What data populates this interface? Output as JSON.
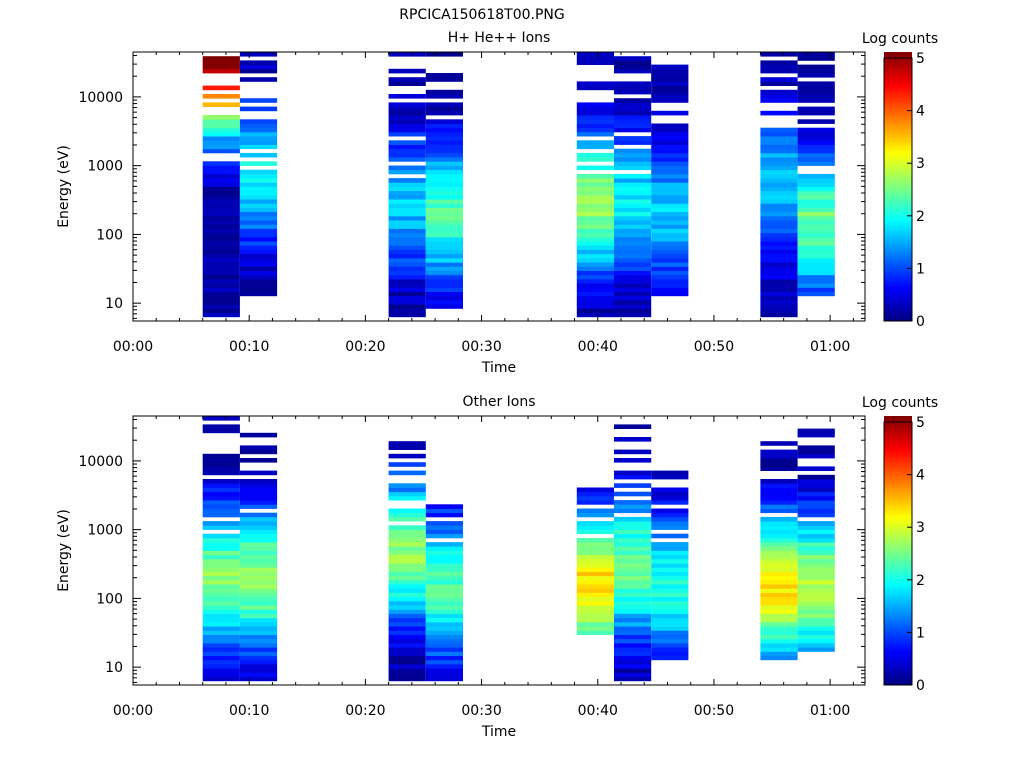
{
  "figure": {
    "title": "RPCICA150618T00.PNG"
  },
  "colormap": [
    "#00007f",
    "#0000ff",
    "#007fff",
    "#00ffff",
    "#7fff7f",
    "#ffff00",
    "#ff7f00",
    "#ff0000",
    "#7f0000"
  ],
  "chart_data": [
    {
      "type": "heatmap",
      "title": "H+ He++ Ions",
      "xlabel": "Time",
      "ylabel": "Energy (eV)",
      "y_scale": "log",
      "xlim_minutes": [
        0,
        63
      ],
      "ylim": [
        5.5,
        45000
      ],
      "x_ticks": [
        {
          "t": 0,
          "label": "00:00"
        },
        {
          "t": 10,
          "label": "00:10"
        },
        {
          "t": 20,
          "label": "00:20"
        },
        {
          "t": 30,
          "label": "00:30"
        },
        {
          "t": 40,
          "label": "00:40"
        },
        {
          "t": 50,
          "label": "00:50"
        },
        {
          "t": 60,
          "label": "01:00"
        }
      ],
      "y_ticks": [
        {
          "v": 10,
          "label": "10"
        },
        {
          "v": 100,
          "label": "100"
        },
        {
          "v": 1000,
          "label": "1000"
        },
        {
          "v": 10000,
          "label": "10000"
        }
      ],
      "colorbar": {
        "label": "Log counts",
        "range": [
          0,
          5
        ],
        "ticks": [
          "0",
          "1",
          "2",
          "3",
          "4",
          "5"
        ]
      },
      "time_bins_minutes": [
        [
          6,
          9.2
        ],
        [
          9.2,
          12.4
        ],
        [
          22,
          25.2
        ],
        [
          25.2,
          28.4
        ],
        [
          38.2,
          41.4
        ],
        [
          41.4,
          44.6
        ],
        [
          44.6,
          47.8
        ],
        [
          54,
          57.2
        ],
        [
          57.2,
          60.4
        ]
      ],
      "peak_log_counts": [
        5.0,
        1.9,
        1.6,
        2.2,
        2.6,
        1.8,
        1.6,
        1.6,
        2.4
      ],
      "peak_energy_ev": [
        40000,
        800,
        300,
        200,
        300,
        300,
        200,
        500,
        150
      ],
      "data_low_ev": [
        6,
        13,
        6,
        9,
        6,
        6,
        13,
        6,
        13
      ],
      "data_high_ev": [
        42000,
        42000,
        42000,
        42000,
        42000,
        42000,
        42000,
        42000,
        42000
      ]
    },
    {
      "type": "heatmap",
      "title": "Other Ions",
      "xlabel": "Time",
      "ylabel": "Energy (eV)",
      "y_scale": "log",
      "xlim_minutes": [
        0,
        63
      ],
      "ylim": [
        5.5,
        45000
      ],
      "x_ticks": [
        {
          "t": 0,
          "label": "00:00"
        },
        {
          "t": 10,
          "label": "00:10"
        },
        {
          "t": 20,
          "label": "00:20"
        },
        {
          "t": 30,
          "label": "00:30"
        },
        {
          "t": 40,
          "label": "00:40"
        },
        {
          "t": 50,
          "label": "00:50"
        },
        {
          "t": 60,
          "label": "01:00"
        }
      ],
      "y_ticks": [
        {
          "v": 10,
          "label": "10"
        },
        {
          "v": 100,
          "label": "100"
        },
        {
          "v": 1000,
          "label": "1000"
        },
        {
          "v": 10000,
          "label": "10000"
        }
      ],
      "colorbar": {
        "label": "Log counts",
        "range": [
          0,
          5
        ],
        "ticks": [
          "0",
          "1",
          "2",
          "3",
          "4",
          "5"
        ]
      },
      "time_bins_minutes": [
        [
          6,
          9.2
        ],
        [
          9.2,
          12.4
        ],
        [
          22,
          25.2
        ],
        [
          25.2,
          28.4
        ],
        [
          38.2,
          41.4
        ],
        [
          41.4,
          44.6
        ],
        [
          44.6,
          47.8
        ],
        [
          54,
          57.2
        ],
        [
          57.2,
          60.4
        ]
      ],
      "peak_log_counts": [
        2.5,
        2.6,
        2.6,
        2.2,
        3.3,
        2.4,
        2.0,
        3.2,
        2.8
      ],
      "peak_energy_ev": [
        200,
        200,
        500,
        150,
        150,
        300,
        150,
        150,
        150
      ],
      "data_low_ev": [
        6,
        6,
        6,
        6,
        30,
        6,
        13,
        13,
        18
      ],
      "data_high_ev": [
        42000,
        30000,
        22000,
        2500,
        4000,
        38000,
        7000,
        22000,
        30000
      ]
    }
  ]
}
